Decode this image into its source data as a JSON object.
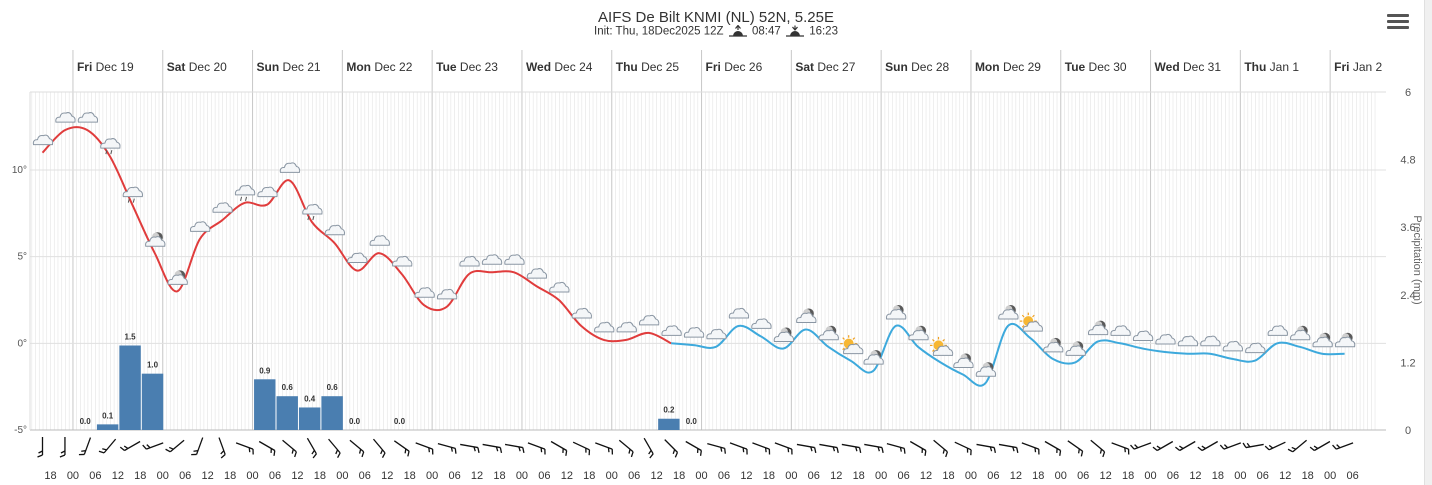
{
  "title": "AIFS De Bilt KNMI (NL) 52N, 5.25E",
  "subtitle": {
    "init": "Init: Thu, 18Dec2025 12Z",
    "sunrise": "08:47",
    "sunset": "16:23"
  },
  "colors": {
    "temp_early": "#e03c3c",
    "temp_late": "#3da9dc",
    "precip": "#4a7eb0",
    "grid": "#e4e4e4"
  },
  "chart_data": {
    "type": "line",
    "start": "Thu Dec 18 18",
    "step_hours": 6,
    "day_labels": [
      {
        "day": "Fri",
        "date": "Dec 19"
      },
      {
        "day": "Sat",
        "date": "Dec 20"
      },
      {
        "day": "Sun",
        "date": "Dec 21"
      },
      {
        "day": "Mon",
        "date": "Dec 22"
      },
      {
        "day": "Tue",
        "date": "Dec 23"
      },
      {
        "day": "Wed",
        "date": "Dec 24"
      },
      {
        "day": "Thu",
        "date": "Dec 25"
      },
      {
        "day": "Fri",
        "date": "Dec 26"
      },
      {
        "day": "Sat",
        "date": "Dec 27"
      },
      {
        "day": "Sun",
        "date": "Dec 28"
      },
      {
        "day": "Mon",
        "date": "Dec 29"
      },
      {
        "day": "Tue",
        "date": "Dec 30"
      },
      {
        "day": "Wed",
        "date": "Dec 31"
      },
      {
        "day": "Thu",
        "date": "Jan 1"
      },
      {
        "day": "Fri",
        "date": "Jan 2"
      }
    ],
    "x_tick_labels": [
      "18",
      "00",
      "06",
      "12",
      "18",
      "00",
      "06",
      "12",
      "18",
      "00",
      "06",
      "12",
      "18",
      "00",
      "06",
      "12",
      "18",
      "00",
      "06",
      "12",
      "18",
      "00",
      "06",
      "12",
      "18",
      "00",
      "06",
      "12",
      "18",
      "00",
      "06",
      "12",
      "18",
      "00",
      "06",
      "12",
      "18",
      "00",
      "06",
      "12",
      "18",
      "00",
      "06",
      "12",
      "18",
      "00",
      "06",
      "12",
      "18",
      "00",
      "06",
      "12",
      "18",
      "00",
      "06",
      "12",
      "18",
      "00",
      "06"
    ],
    "y_left": {
      "ticks": [
        "10°",
        "5°",
        "0°",
        "-5°"
      ],
      "values": [
        10,
        5,
        0,
        -5
      ],
      "range": [
        -5,
        14.5
      ]
    },
    "y_right": {
      "label": "Precipitation (mm)",
      "ticks": [
        "6",
        "4.8",
        "3.6",
        "2.4",
        "1.2",
        "0"
      ],
      "values": [
        6,
        4.8,
        3.6,
        2.4,
        1.2,
        0
      ],
      "range": [
        0,
        6
      ]
    },
    "series": [
      {
        "kind": "temperature",
        "values": [
          11,
          12.3,
          12.3,
          10.8,
          8,
          5.2,
          3,
          6,
          7.1,
          8.1,
          8,
          9.4,
          7,
          5.8,
          4.2,
          5.2,
          4,
          2.2,
          2.1,
          4,
          4.1,
          4.1,
          3.3,
          2.5,
          1,
          0.2,
          0.2,
          0.6,
          0,
          -0.1,
          -0.2,
          1,
          0.4,
          -0.3,
          0.8,
          -0.2,
          -1,
          -1.6,
          1,
          -0.2,
          -1.1,
          -1.8,
          -2.3,
          1,
          0.3,
          -0.9,
          -1.1,
          0.1,
          0,
          -0.3,
          -0.5,
          -0.6,
          -0.6,
          -0.9,
          -1,
          0,
          -0.2,
          -0.6,
          -0.6
        ],
        "change_index": 28
      },
      {
        "kind": "precipitation",
        "values": [
          0,
          0,
          0.1,
          1.5,
          1.0,
          0,
          0,
          0,
          0,
          0.9,
          0.6,
          0.4,
          0.6,
          0,
          0,
          0,
          0,
          0,
          0,
          0,
          0,
          0,
          0,
          0,
          0,
          0,
          0,
          0.2,
          0,
          0,
          0,
          0,
          0,
          0,
          0,
          0,
          0,
          0,
          0,
          0,
          0,
          0,
          0,
          0,
          0,
          0,
          0,
          0,
          0,
          0,
          0,
          0,
          0,
          0,
          0,
          0,
          0,
          0,
          0
        ],
        "labels": [
          {
            "i": 1,
            "text": "0.0"
          },
          {
            "i": 2,
            "text": "0.1"
          },
          {
            "i": 3,
            "text": "1.5"
          },
          {
            "i": 4,
            "text": "1.0"
          },
          {
            "i": 9,
            "text": "0.9"
          },
          {
            "i": 10,
            "text": "0.6"
          },
          {
            "i": 11,
            "text": "0.4"
          },
          {
            "i": 12,
            "text": "0.6"
          },
          {
            "i": 13,
            "text": "0.0"
          },
          {
            "i": 15,
            "text": "0.0"
          },
          {
            "i": 27,
            "text": "0.2"
          },
          {
            "i": 28,
            "text": "0.0"
          }
        ]
      }
    ],
    "weather_icons": [
      "cloud",
      "cloud",
      "cloud",
      "sleet",
      "rain",
      "moon-cloud",
      "moon-cloud",
      "cloud",
      "cloud",
      "rain",
      "cloud",
      "cloud",
      "rain",
      "cloud",
      "cloud",
      "cloud",
      "cloud",
      "cloud",
      "cloud",
      "cloud",
      "cloud",
      "cloud",
      "cloud",
      "cloud",
      "cloud",
      "cloud",
      "cloud",
      "cloud",
      "cloud",
      "cloud",
      "cloud",
      "cloud",
      "cloud",
      "moon-cloud",
      "moon-cloud",
      "moon-cloud",
      "sun-cloud",
      "moon-cloud",
      "moon-cloud",
      "moon-cloud",
      "sun-cloud",
      "moon-cloud",
      "moon-cloud",
      "moon-cloud",
      "sun-cloud",
      "moon-cloud",
      "moon-cloud",
      "moon-cloud",
      "cloud",
      "cloud",
      "cloud",
      "cloud",
      "cloud",
      "cloud",
      "cloud",
      "cloud",
      "moon-cloud",
      "moon-cloud",
      "moon-cloud"
    ],
    "wind_directions_deg": [
      180,
      180,
      200,
      220,
      240,
      250,
      230,
      200,
      160,
      110,
      120,
      130,
      150,
      140,
      130,
      140,
      125,
      110,
      105,
      100,
      100,
      100,
      110,
      120,
      115,
      110,
      130,
      150,
      135,
      120,
      105,
      110,
      110,
      110,
      100,
      100,
      100,
      100,
      105,
      120,
      130,
      115,
      100,
      100,
      110,
      120,
      125,
      130,
      110,
      250,
      240,
      240,
      240,
      250,
      260,
      245,
      230,
      240,
      250
    ],
    "grid": true,
    "legend": "none"
  }
}
